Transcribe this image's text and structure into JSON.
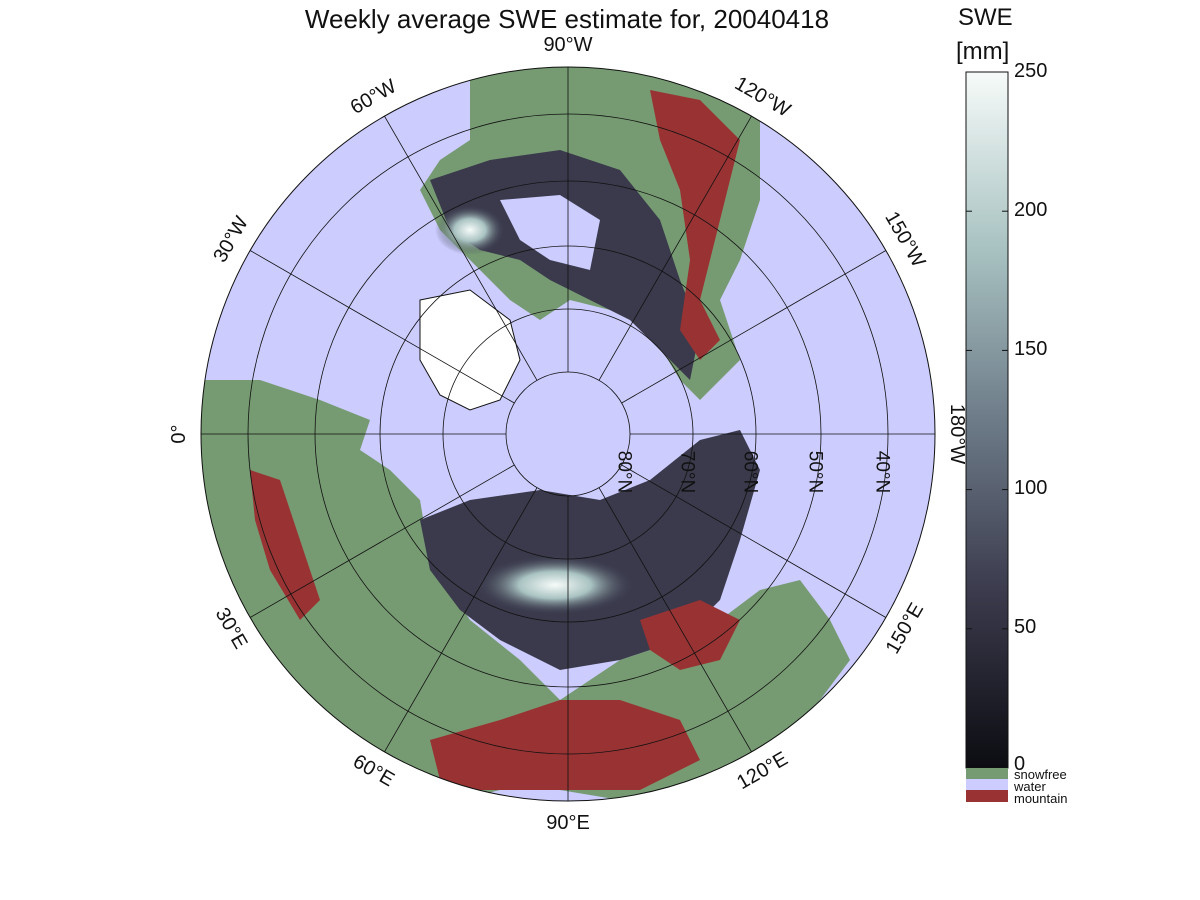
{
  "title": "Weekly average SWE estimate for, 20040418",
  "colorbar": {
    "title_line1": "SWE",
    "title_line2": "[mm]",
    "ticks": [
      "250",
      "200",
      "150",
      "100",
      "50",
      "0"
    ],
    "range": [
      0,
      250
    ],
    "gradient_colors": [
      "#0c0c12",
      "#3a3a4c",
      "#6d7b88",
      "#a9c3c2",
      "#f6fbf9"
    ],
    "categories": [
      {
        "label": "snowfree",
        "color": "#769b72"
      },
      {
        "label": "water",
        "color": "#ccccff"
      },
      {
        "label": "mountain",
        "color": "#993333"
      }
    ]
  },
  "map": {
    "projection": "north-polar-stereographic",
    "ocean_color": "#ccccff",
    "land_color": "#769b72",
    "mountain_color": "#993333",
    "longitude_labels": [
      {
        "text": "90°W",
        "angle": 0
      },
      {
        "text": "60°W",
        "angle": -30
      },
      {
        "text": "30°W",
        "angle": -60
      },
      {
        "text": "0°",
        "angle": -90
      },
      {
        "text": "120°W",
        "angle": 30
      },
      {
        "text": "150°W",
        "angle": 60
      },
      {
        "text": "180°W",
        "angle": 90
      },
      {
        "text": "150°E",
        "angle": 120
      },
      {
        "text": "120°E",
        "angle": 150
      },
      {
        "text": "90°E",
        "angle": 180
      },
      {
        "text": "60°E",
        "angle": 210
      },
      {
        "text": "30°E",
        "angle": 240
      }
    ],
    "latitude_labels": [
      "80°N",
      "70°N",
      "60°N",
      "50°N",
      "40°N"
    ]
  }
}
